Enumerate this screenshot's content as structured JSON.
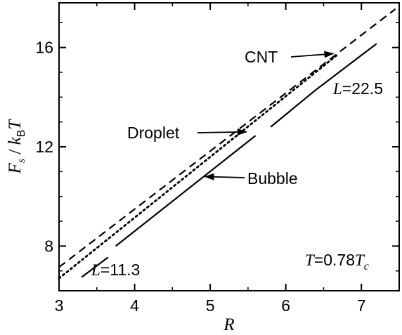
{
  "chart_data": {
    "type": "line",
    "xlim": [
      3,
      7.5
    ],
    "ylim": [
      6.2,
      17.8
    ],
    "x_ticks": [
      {
        "value": 3,
        "label": "3"
      },
      {
        "value": 4,
        "label": "4"
      },
      {
        "value": 5,
        "label": "5"
      },
      {
        "value": 6,
        "label": "6"
      },
      {
        "value": 7,
        "label": "7"
      }
    ],
    "y_ticks": [
      {
        "value": 8,
        "label": "8"
      },
      {
        "value": 12,
        "label": "12"
      },
      {
        "value": 16,
        "label": "16"
      }
    ],
    "xlabel": {
      "main": "R"
    },
    "ylabel": {
      "f": "F",
      "s": "s",
      "slash": " / ",
      "k": "k",
      "b": "B",
      "t": "T"
    },
    "temperature_label": {
      "t": "T",
      "eq": "=0.78",
      "tc": "T",
      "c": "c"
    },
    "series": [
      {
        "name": "CNT",
        "style": "dashed",
        "segments": [
          [
            [
              3.0,
              7.15
            ],
            [
              7.45,
              17.55
            ]
          ]
        ]
      },
      {
        "name": "Droplet",
        "style": "dotted",
        "segments": [
          [
            [
              3.0,
              6.7
            ],
            [
              6.7,
              15.75
            ]
          ]
        ]
      },
      {
        "name": "Bubble",
        "style": "solid",
        "segments": [
          [
            [
              3.3,
              6.75
            ],
            [
              3.65,
              7.55
            ]
          ],
          [
            [
              3.75,
              8.0
            ],
            [
              5.6,
              12.45
            ]
          ],
          [
            [
              5.8,
              12.8
            ],
            [
              6.4,
              14.3
            ]
          ],
          [
            [
              6.4,
              14.3
            ],
            [
              7.2,
              16.15
            ]
          ]
        ]
      }
    ],
    "annotations": {
      "cnt": {
        "text": "CNT",
        "arrow_to": [
          6.63,
          15.75
        ]
      },
      "droplet": {
        "text": "Droplet",
        "arrow_to": [
          5.48,
          12.6
        ]
      },
      "bubble": {
        "text": "Bubble",
        "arrow_to": [
          4.93,
          10.8
        ]
      },
      "l_small": {
        "l": "L",
        "value": "=11.3"
      },
      "l_large": {
        "l": "L",
        "value": "=22.5"
      }
    }
  }
}
